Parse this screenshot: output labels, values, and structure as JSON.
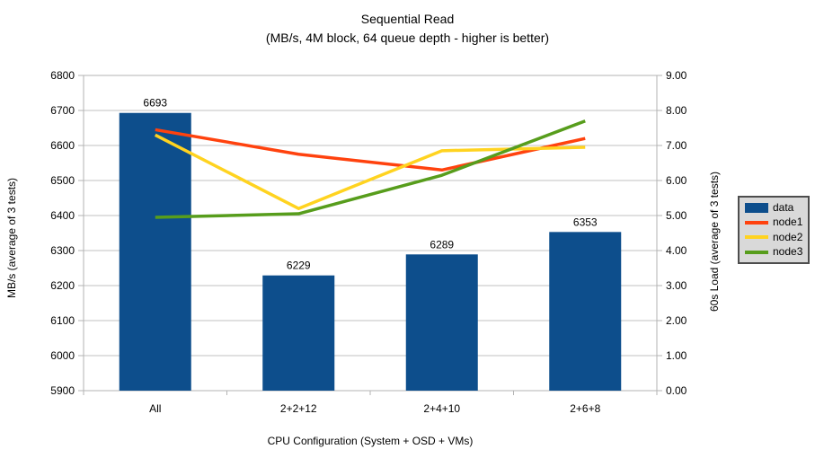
{
  "title": "Sequential Read",
  "subtitle": "(MB/s, 4M block, 64 queue depth - higher is better)",
  "chart_data": {
    "type": "bar+line combo",
    "categories": [
      "All",
      "2+2+12",
      "2+4+10",
      "2+6+8"
    ],
    "bar_series": {
      "name": "data",
      "color": "#0d4e8c",
      "axis": "left",
      "values": [
        6693,
        6229,
        6289,
        6353
      ],
      "data_labels": [
        "6693",
        "6229",
        "6289",
        "6353"
      ]
    },
    "line_series": [
      {
        "name": "node1",
        "color": "#ff420e",
        "axis": "right",
        "values": [
          7.45,
          6.75,
          6.3,
          7.2
        ]
      },
      {
        "name": "node2",
        "color": "#ffd320",
        "axis": "right",
        "values": [
          7.3,
          5.2,
          6.85,
          6.95
        ]
      },
      {
        "name": "node3",
        "color": "#579d1c",
        "axis": "right",
        "values": [
          4.95,
          5.05,
          6.15,
          7.7
        ]
      }
    ],
    "xlabel": "CPU Configuration (System + OSD + VMs)",
    "ylabel_left": "MB/s (average of 3 tests)",
    "ylabel_right": "60s Load (average of 3 tests)",
    "ylim_left": [
      5900,
      6800
    ],
    "ytick_step_left": 100,
    "ylim_right": [
      0,
      9
    ],
    "ytick_step_right": 1,
    "left_tick_labels": [
      "5900",
      "6000",
      "6100",
      "6200",
      "6300",
      "6400",
      "6500",
      "6600",
      "6700",
      "6800"
    ],
    "right_tick_labels": [
      "0.00",
      "1.00",
      "2.00",
      "3.00",
      "4.00",
      "5.00",
      "6.00",
      "7.00",
      "8.00",
      "9.00"
    ],
    "grid": true,
    "legend_position": "right",
    "legend_background": "#d9d9d9",
    "axis_color": "#b3b3b3",
    "gridline_color": "#c0c0c0",
    "text_color": "#000000",
    "background": "#ffffff"
  }
}
